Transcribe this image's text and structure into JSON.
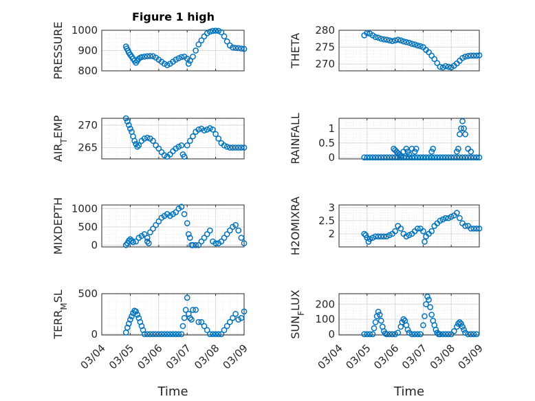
{
  "figure_title": "Figure 1 high",
  "marker_color": "#0072bd",
  "chart_data": [
    {
      "type": "scatter",
      "ylabel": "PRESSURE",
      "ylabel_sub": null,
      "xlim": [
        0,
        5
      ],
      "ylim": [
        800,
        1000
      ],
      "yticks": [
        800,
        900,
        1000
      ],
      "xtick_labels": [],
      "xlabel": "",
      "series": [
        {
          "x": [
            0.85,
            0.88,
            0.92,
            0.95,
            1.0,
            1.05,
            1.1,
            1.15,
            1.2,
            1.25,
            1.3,
            1.35,
            1.4,
            1.5,
            1.6,
            1.7,
            1.8,
            1.9,
            2.0,
            2.1,
            2.2,
            2.3,
            2.4,
            2.5,
            2.6,
            2.7,
            2.8,
            2.9,
            3.0,
            3.05,
            3.1,
            3.2,
            3.3,
            3.4,
            3.5,
            3.6,
            3.7,
            3.8,
            3.9,
            4.0,
            4.1,
            4.2,
            4.3,
            4.4,
            4.5,
            4.6,
            4.7,
            4.8,
            4.9,
            5.0
          ],
          "y": [
            920,
            910,
            900,
            890,
            880,
            870,
            860,
            850,
            840,
            850,
            860,
            865,
            868,
            870,
            872,
            873,
            872,
            865,
            855,
            845,
            835,
            828,
            835,
            845,
            855,
            862,
            868,
            870,
            860,
            835,
            850,
            870,
            900,
            930,
            950,
            970,
            985,
            993,
            997,
            998,
            997,
            990,
            970,
            945,
            925,
            915,
            913,
            912,
            910,
            908
          ]
        }
      ]
    },
    {
      "type": "scatter",
      "ylabel": "THETA",
      "ylabel_sub": null,
      "xlim": [
        0,
        5
      ],
      "ylim": [
        268,
        280
      ],
      "yticks": [
        270,
        275,
        280
      ],
      "xtick_labels": [],
      "xlabel": "",
      "series": [
        {
          "x": [
            0.9,
            1.0,
            1.1,
            1.2,
            1.3,
            1.4,
            1.5,
            1.6,
            1.7,
            1.8,
            1.9,
            2.0,
            2.1,
            2.2,
            2.3,
            2.4,
            2.5,
            2.6,
            2.7,
            2.8,
            2.9,
            3.0,
            3.1,
            3.2,
            3.3,
            3.4,
            3.5,
            3.6,
            3.7,
            3.8,
            3.9,
            4.0,
            4.1,
            4.2,
            4.3,
            4.4,
            4.5,
            4.6,
            4.7,
            4.8,
            4.9,
            5.0
          ],
          "y": [
            278.5,
            279.2,
            279.0,
            278.5,
            278.0,
            277.8,
            277.5,
            277.3,
            277.2,
            277.0,
            276.8,
            277.0,
            277.2,
            277.0,
            276.7,
            276.5,
            276.3,
            276.0,
            275.8,
            275.5,
            275.3,
            275.0,
            274.2,
            273.5,
            272.5,
            271.5,
            270.3,
            269.2,
            269.0,
            269.4,
            269.2,
            269.0,
            269.5,
            270.2,
            271.0,
            271.8,
            272.2,
            272.4,
            272.5,
            272.5,
            272.5,
            272.6
          ]
        }
      ]
    },
    {
      "type": "scatter",
      "ylabel": "AIR",
      "ylabel_sub": "T",
      "ylabel_suffix": "EMP",
      "xlim": [
        0,
        5
      ],
      "ylim": [
        262.5,
        271.5
      ],
      "yticks": [
        265,
        270
      ],
      "xtick_labels": [],
      "xlabel": "",
      "series": [
        {
          "x": [
            0.85,
            0.9,
            0.95,
            1.0,
            1.05,
            1.1,
            1.15,
            1.2,
            1.25,
            1.3,
            1.4,
            1.5,
            1.6,
            1.7,
            1.8,
            1.9,
            2.0,
            2.1,
            2.2,
            2.3,
            2.4,
            2.5,
            2.6,
            2.7,
            2.8,
            2.85,
            2.9,
            3.0,
            3.1,
            3.2,
            3.3,
            3.4,
            3.5,
            3.6,
            3.7,
            3.8,
            3.9,
            4.0,
            4.1,
            4.2,
            4.3,
            4.4,
            4.5,
            4.6,
            4.7,
            4.8,
            4.9,
            5.0
          ],
          "y": [
            271.5,
            270.8,
            270.0,
            269.2,
            268.5,
            267.5,
            266.5,
            265.8,
            265.2,
            265.5,
            266.5,
            267.0,
            267.2,
            267.0,
            266.5,
            265.5,
            264.8,
            264.0,
            263.3,
            263.0,
            263.5,
            264.2,
            264.8,
            265.2,
            265.5,
            263.5,
            263.0,
            265.5,
            266.5,
            267.5,
            268.5,
            269.0,
            269.2,
            268.8,
            269.0,
            269.3,
            269.0,
            268.0,
            267.0,
            266.0,
            265.5,
            265.2,
            265.0,
            265.0,
            265.0,
            265.0,
            265.0,
            265.0
          ]
        }
      ]
    },
    {
      "type": "scatter",
      "ylabel": "RAINFALL",
      "ylabel_sub": null,
      "xlim": [
        0,
        5
      ],
      "ylim": [
        -0.05,
        1.35
      ],
      "yticks": [
        0,
        0.5,
        1
      ],
      "ytick_labels": [
        "0",
        "0.5",
        "1"
      ],
      "xtick_labels": [],
      "xlabel": "",
      "series": [
        {
          "x": [
            0.9,
            1.0,
            1.1,
            1.2,
            1.3,
            1.4,
            1.5,
            1.6,
            1.7,
            1.8,
            1.9,
            2.0,
            2.1,
            2.2,
            2.3,
            2.4,
            2.5,
            2.6,
            2.7,
            2.8,
            2.9,
            3.0,
            3.1,
            3.2,
            3.3,
            3.4,
            3.5,
            3.6,
            3.7,
            3.8,
            3.9,
            4.0,
            4.1,
            4.2,
            4.3,
            4.4,
            4.5,
            4.6,
            4.7,
            4.8,
            4.9,
            5.0,
            1.95,
            2.0,
            2.05,
            2.1,
            2.15,
            2.2,
            2.3,
            2.4,
            2.45,
            2.5,
            2.6,
            2.7,
            2.75,
            3.3,
            3.35,
            4.2,
            4.25,
            4.3,
            4.35,
            4.4,
            4.45,
            4.5,
            4.6,
            4.7
          ],
          "y": [
            0,
            0,
            0,
            0,
            0,
            0,
            0,
            0,
            0,
            0,
            0,
            0,
            0,
            0,
            0,
            0,
            0,
            0,
            0,
            0,
            0,
            0,
            0,
            0,
            0,
            0,
            0,
            0,
            0,
            0,
            0,
            0,
            0,
            0,
            0,
            0,
            0,
            0,
            0,
            0,
            0,
            0,
            0.3,
            0.25,
            0.2,
            0.15,
            0.1,
            0.05,
            0.2,
            0.3,
            0.2,
            0.1,
            0.3,
            0.2,
            0.3,
            0.2,
            0.3,
            0.2,
            0.3,
            0.8,
            1.0,
            1.25,
            1.0,
            0.8,
            0.3,
            0.2
          ]
        }
      ]
    },
    {
      "type": "scatter",
      "ylabel": "MIXDEPTH",
      "ylabel_sub": null,
      "xlim": [
        0,
        5
      ],
      "ylim": [
        -50,
        1100
      ],
      "yticks": [
        0,
        500,
        1000
      ],
      "xtick_labels": [],
      "xlabel": "",
      "series": [
        {
          "x": [
            0.85,
            0.9,
            0.95,
            1.0,
            1.05,
            1.1,
            1.2,
            1.3,
            1.4,
            1.5,
            1.6,
            1.7,
            1.8,
            1.9,
            2.0,
            2.1,
            2.2,
            2.3,
            2.4,
            2.5,
            2.6,
            2.7,
            2.8,
            2.9,
            3.0,
            3.05,
            3.1,
            3.15,
            3.2,
            3.3,
            3.4,
            3.5,
            3.6,
            3.7,
            3.8,
            3.9,
            4.0,
            4.1,
            4.2,
            4.3,
            4.4,
            4.5,
            4.6,
            4.7,
            4.8,
            4.9,
            5.0,
            1.6,
            1.65
          ],
          "y": [
            0,
            50,
            120,
            160,
            120,
            80,
            100,
            200,
            250,
            300,
            200,
            350,
            450,
            550,
            650,
            750,
            800,
            850,
            800,
            850,
            900,
            1000,
            1050,
            850,
            600,
            300,
            200,
            0,
            0,
            0,
            0,
            100,
            200,
            300,
            400,
            100,
            50,
            50,
            100,
            200,
            300,
            400,
            500,
            550,
            400,
            200,
            50,
            100,
            50
          ]
        }
      ]
    },
    {
      "type": "scatter",
      "ylabel": "H2OMIXRA",
      "ylabel_sub": null,
      "xlim": [
        0,
        5
      ],
      "ylim": [
        1.5,
        3.1
      ],
      "yticks": [
        2,
        2.5,
        3
      ],
      "ytick_labels": [
        "2",
        "2.5",
        "3"
      ],
      "xtick_labels": [],
      "xlabel": "",
      "series": [
        {
          "x": [
            0.9,
            0.95,
            1.0,
            1.05,
            1.1,
            1.2,
            1.3,
            1.4,
            1.5,
            1.6,
            1.7,
            1.8,
            1.9,
            2.0,
            2.1,
            2.2,
            2.3,
            2.4,
            2.5,
            2.6,
            2.7,
            2.8,
            2.9,
            3.0,
            3.05,
            3.1,
            3.2,
            3.3,
            3.4,
            3.5,
            3.6,
            3.7,
            3.8,
            3.9,
            4.0,
            4.1,
            4.2,
            4.3,
            4.4,
            4.5,
            4.6,
            4.7,
            4.8,
            4.9,
            5.0
          ],
          "y": [
            2.0,
            1.95,
            1.85,
            1.7,
            1.8,
            1.85,
            1.9,
            1.9,
            1.9,
            1.9,
            1.9,
            1.95,
            2.0,
            2.1,
            2.3,
            2.2,
            2.0,
            1.9,
            1.95,
            2.0,
            2.1,
            2.2,
            2.2,
            2.1,
            1.7,
            1.9,
            2.0,
            2.1,
            2.3,
            2.4,
            2.5,
            2.55,
            2.6,
            2.6,
            2.65,
            2.7,
            2.8,
            2.6,
            2.4,
            2.3,
            2.3,
            2.2,
            2.2,
            2.2,
            2.2
          ]
        }
      ]
    },
    {
      "type": "scatter",
      "ylabel": "TERR",
      "ylabel_sub": "M",
      "ylabel_suffix": "SL",
      "xlim": [
        0,
        5
      ],
      "ylim": [
        -10,
        500
      ],
      "yticks": [
        0,
        500
      ],
      "xtick_labels": [
        "03/04",
        "03/05",
        "03/06",
        "03/07",
        "03/08",
        "03/09"
      ],
      "xlabel": "Time",
      "series": [
        {
          "x": [
            0.85,
            0.9,
            0.95,
            1.0,
            1.05,
            1.1,
            1.15,
            1.2,
            1.25,
            1.3,
            1.35,
            1.4,
            1.45,
            1.5,
            1.6,
            1.7,
            1.8,
            1.9,
            2.0,
            2.1,
            2.2,
            2.3,
            2.4,
            2.5,
            2.6,
            2.7,
            2.8,
            2.85,
            2.9,
            2.95,
            3.0,
            3.05,
            3.1,
            3.15,
            3.2,
            3.3,
            3.4,
            3.5,
            3.6,
            3.7,
            3.8,
            3.9,
            4.0,
            4.1,
            4.2,
            4.3,
            4.4,
            4.5,
            4.6,
            4.7,
            4.8,
            4.9,
            5.0
          ],
          "y": [
            20,
            80,
            130,
            180,
            220,
            260,
            290,
            280,
            240,
            200,
            150,
            100,
            50,
            0,
            0,
            0,
            0,
            0,
            0,
            0,
            0,
            0,
            0,
            0,
            0,
            0,
            0,
            100,
            200,
            300,
            450,
            250,
            200,
            180,
            300,
            300,
            150,
            150,
            100,
            50,
            0,
            0,
            0,
            0,
            0,
            50,
            100,
            150,
            200,
            250,
            180,
            200,
            280
          ]
        }
      ]
    },
    {
      "type": "scatter",
      "ylabel": "SUN",
      "ylabel_sub": "F",
      "ylabel_suffix": "LUX",
      "xlim": [
        0,
        5
      ],
      "ylim": [
        -5,
        270
      ],
      "yticks": [
        0,
        100,
        200
      ],
      "xtick_labels": [
        "03/04",
        "03/05",
        "03/06",
        "03/07",
        "03/08",
        "03/09"
      ],
      "xlabel": "Time",
      "series": [
        {
          "x": [
            0.9,
            1.0,
            1.1,
            1.2,
            1.25,
            1.3,
            1.35,
            1.4,
            1.45,
            1.5,
            1.55,
            1.6,
            1.65,
            1.7,
            1.8,
            1.9,
            2.0,
            2.1,
            2.2,
            2.25,
            2.3,
            2.35,
            2.4,
            2.45,
            2.5,
            2.6,
            2.7,
            2.8,
            2.9,
            3.0,
            3.05,
            3.1,
            3.15,
            3.2,
            3.25,
            3.3,
            3.35,
            3.4,
            3.45,
            3.5,
            3.55,
            3.6,
            3.7,
            3.8,
            3.9,
            4.0,
            4.1,
            4.2,
            4.25,
            4.3,
            4.35,
            4.4,
            4.45,
            4.5,
            4.6,
            4.7,
            4.8,
            4.9
          ],
          "y": [
            0,
            0,
            0,
            0,
            40,
            80,
            120,
            150,
            130,
            90,
            50,
            20,
            5,
            0,
            0,
            0,
            0,
            10,
            50,
            80,
            100,
            90,
            60,
            30,
            10,
            0,
            0,
            0,
            0,
            60,
            120,
            200,
            250,
            230,
            180,
            130,
            90,
            60,
            30,
            10,
            0,
            0,
            0,
            0,
            0,
            0,
            20,
            50,
            70,
            80,
            70,
            50,
            30,
            10,
            0,
            0,
            0,
            0
          ]
        }
      ]
    }
  ]
}
